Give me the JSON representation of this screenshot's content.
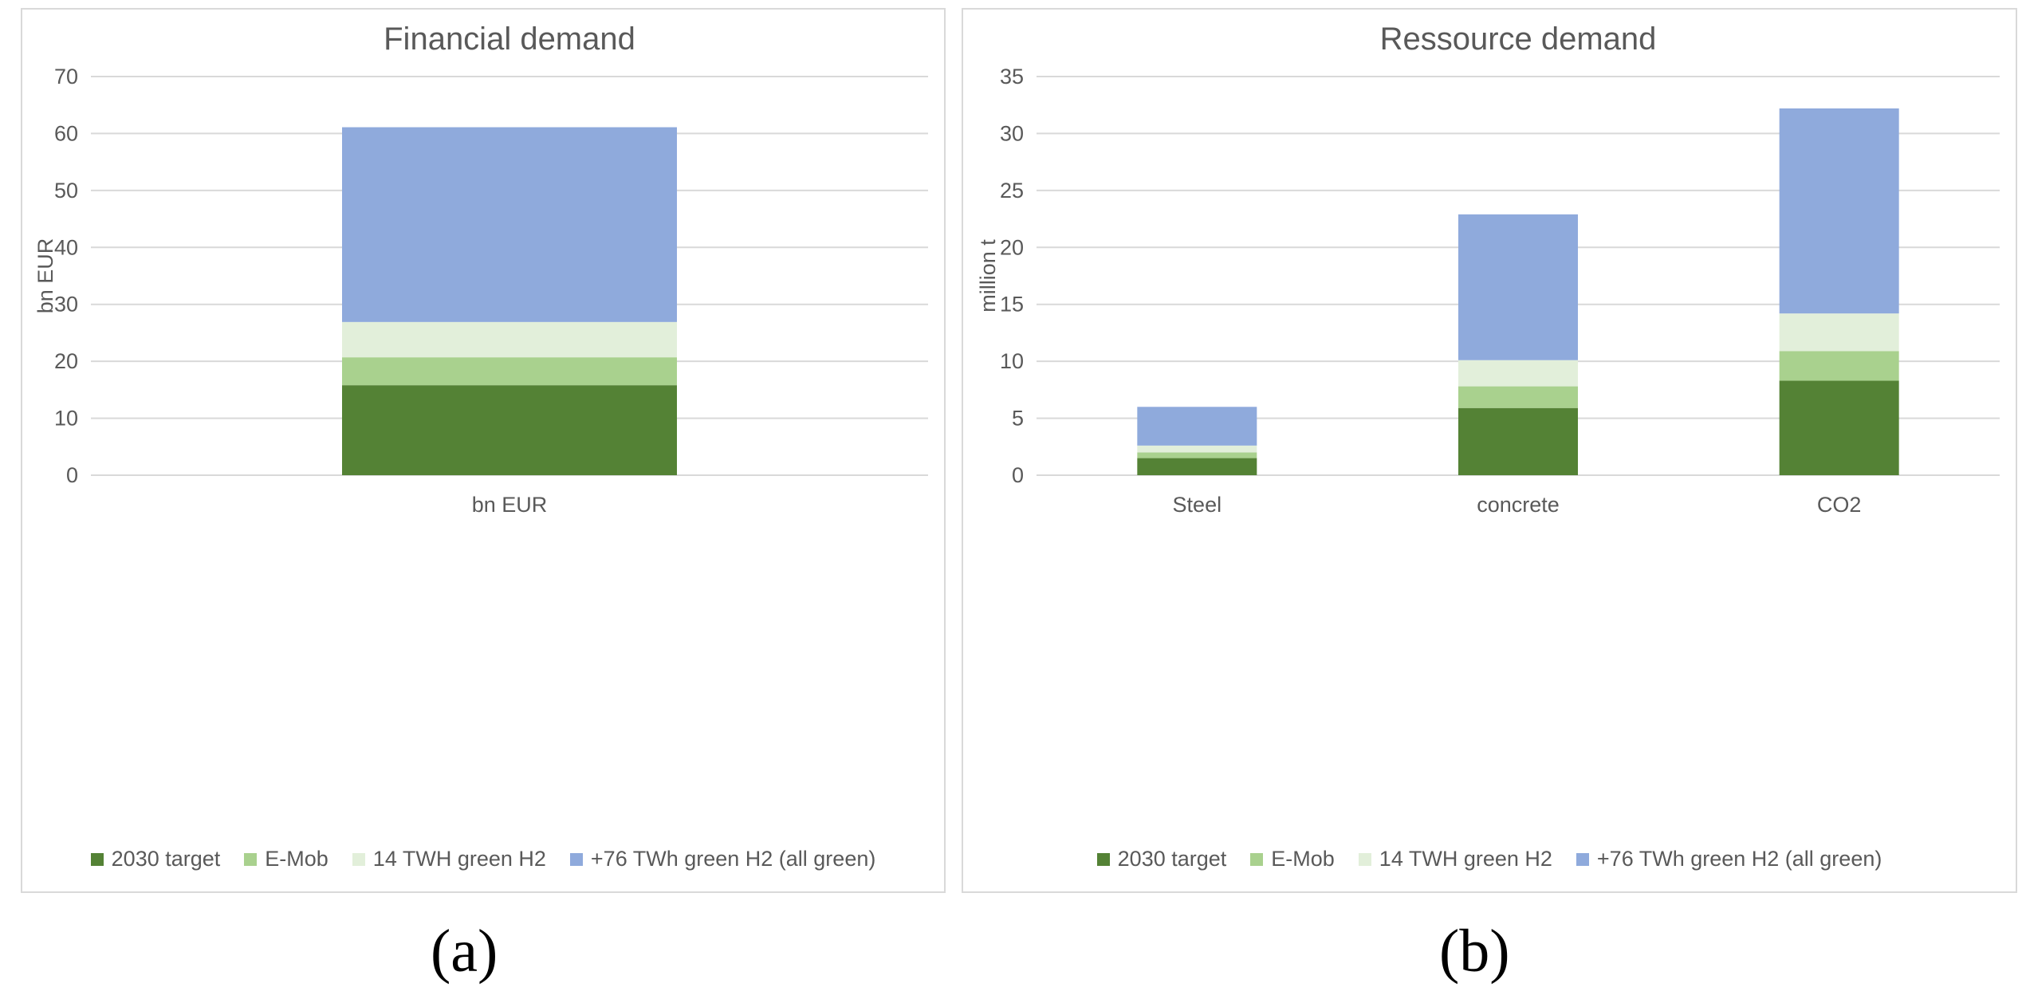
{
  "chart_data": [
    {
      "id": "a",
      "type": "bar",
      "stacked": true,
      "title": "Financial demand",
      "panel_label": "(a)",
      "xlabel": "",
      "ylabel": "bn EUR",
      "ylim": [
        0,
        70
      ],
      "yticks": [
        0,
        10,
        20,
        30,
        40,
        50,
        60,
        70
      ],
      "grid": true,
      "legend_position": "bottom",
      "categories": [
        "bn EUR"
      ],
      "series": [
        {
          "name": "2030 target",
          "color": "#548235",
          "values": [
            15.8
          ]
        },
        {
          "name": "E-Mob",
          "color": "#a9d18e",
          "values": [
            4.9
          ]
        },
        {
          "name": "14 TWH green H2",
          "color": "#e2efda",
          "values": [
            6.2
          ]
        },
        {
          "name": "+76 TWh green H2 (all green)",
          "color": "#8faadc",
          "values": [
            34.2
          ]
        }
      ]
    },
    {
      "id": "b",
      "type": "bar",
      "stacked": true,
      "title": "Ressource demand",
      "panel_label": "(b)",
      "xlabel": "",
      "ylabel": "million t",
      "ylim": [
        0,
        35
      ],
      "yticks": [
        0,
        5,
        10,
        15,
        20,
        25,
        30,
        35
      ],
      "grid": true,
      "legend_position": "bottom",
      "categories": [
        "Steel",
        "concrete",
        "CO2"
      ],
      "series": [
        {
          "name": "2030 target",
          "color": "#548235",
          "values": [
            1.5,
            5.9,
            8.3
          ]
        },
        {
          "name": "E-Mob",
          "color": "#a9d18e",
          "values": [
            0.5,
            1.9,
            2.6
          ]
        },
        {
          "name": "14 TWH green H2",
          "color": "#e2efda",
          "values": [
            0.6,
            2.3,
            3.3
          ]
        },
        {
          "name": "+76 TWh green H2 (all green)",
          "color": "#8faadc",
          "values": [
            3.4,
            12.8,
            18.0
          ]
        }
      ]
    }
  ]
}
